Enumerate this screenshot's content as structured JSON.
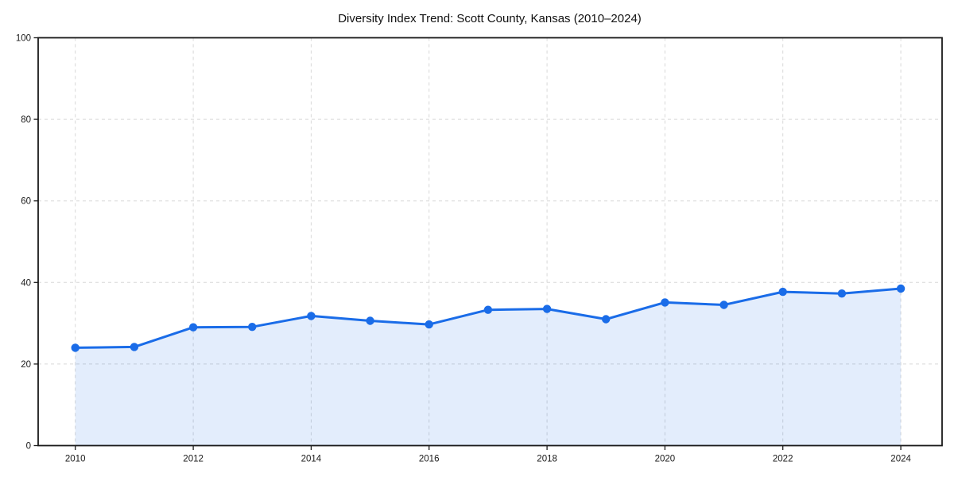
{
  "window": {
    "background": "#ffffff"
  },
  "chart_data": {
    "type": "area",
    "title": "Diversity Index Trend: Scott County, Kansas (2010–2024)",
    "xlabel": "",
    "ylabel": "",
    "x": [
      2010,
      2011,
      2012,
      2013,
      2014,
      2015,
      2016,
      2017,
      2018,
      2019,
      2020,
      2021,
      2022,
      2023,
      2024
    ],
    "series": [
      {
        "name": "Diversity Index",
        "values": [
          24.0,
          24.2,
          29.0,
          29.1,
          31.8,
          30.6,
          29.7,
          33.3,
          33.5,
          31.0,
          35.1,
          34.5,
          37.7,
          37.3,
          38.5
        ]
      }
    ],
    "xticks": [
      2010,
      2012,
      2014,
      2016,
      2018,
      2020,
      2022,
      2024
    ],
    "yticks": [
      0,
      20,
      40,
      60,
      80,
      100
    ],
    "xlim": [
      2009.37,
      2024.7
    ],
    "ylim": [
      0,
      100
    ],
    "grid": true,
    "legend": "none",
    "style": {
      "line_color": "#1a6ce8",
      "marker_color": "#1a6ce8",
      "fill_color": "rgba(26,108,232,0.12)",
      "grid_color": "#d8d8d8",
      "spine_color": "#1a1a1a",
      "text_color": "#1a1a1a",
      "title_color": "#111111",
      "background": "#ffffff"
    }
  }
}
